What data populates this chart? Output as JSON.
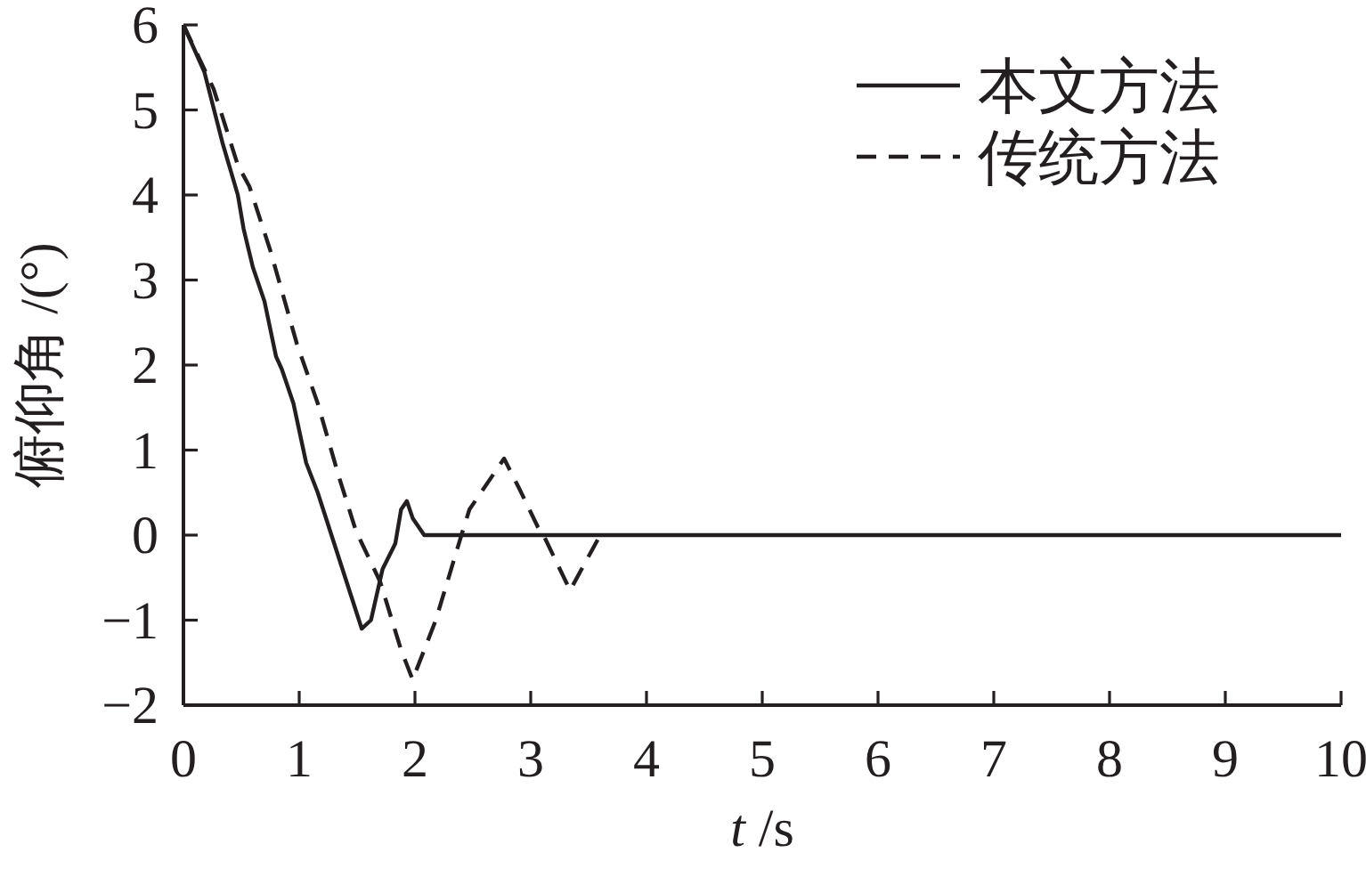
{
  "chart_data": {
    "type": "line",
    "xlabel": "t /s",
    "ylabel": "俯仰角 /(°)",
    "xlim": [
      0,
      10
    ],
    "ylim": [
      -2,
      6
    ],
    "xticks": [
      0,
      1,
      2,
      3,
      4,
      5,
      6,
      7,
      8,
      9,
      10
    ],
    "yticks": [
      -2,
      -1,
      0,
      1,
      2,
      3,
      4,
      5,
      6
    ],
    "legend": "top right",
    "series": [
      {
        "name": "本文方法",
        "color": "#231f20",
        "line_style": "solid",
        "x": [
          0,
          0.18,
          0.34,
          0.47,
          0.52,
          0.6,
          0.7,
          0.8,
          0.85,
          0.95,
          1.06,
          1.16,
          1.54,
          1.62,
          1.72,
          1.83,
          1.88,
          1.93,
          1.98,
          2.08,
          10
        ],
        "values": [
          6.0,
          5.45,
          4.6,
          4.0,
          3.6,
          3.15,
          2.75,
          2.1,
          1.95,
          1.55,
          0.85,
          0.5,
          -1.1,
          -1.0,
          -0.4,
          -0.1,
          0.3,
          0.4,
          0.2,
          0,
          0
        ]
      },
      {
        "name": "传统方法",
        "color": "#231f20",
        "line_style": "dashed",
        "x": [
          0,
          0.26,
          0.47,
          0.57,
          0.75,
          0.98,
          1.16,
          1.34,
          1.49,
          1.7,
          1.88,
          1.98,
          2.18,
          2.39,
          2.47,
          2.57,
          2.77,
          2.9,
          3.06,
          3.11,
          3.34,
          3.6
        ],
        "values": [
          6.0,
          5.25,
          4.35,
          4.1,
          3.35,
          2.25,
          1.55,
          0.7,
          0.05,
          -0.55,
          -1.35,
          -1.7,
          -1.0,
          -0.05,
          0.3,
          0.5,
          0.9,
          0.55,
          0.1,
          0,
          -0.65,
          0
        ]
      }
    ]
  }
}
